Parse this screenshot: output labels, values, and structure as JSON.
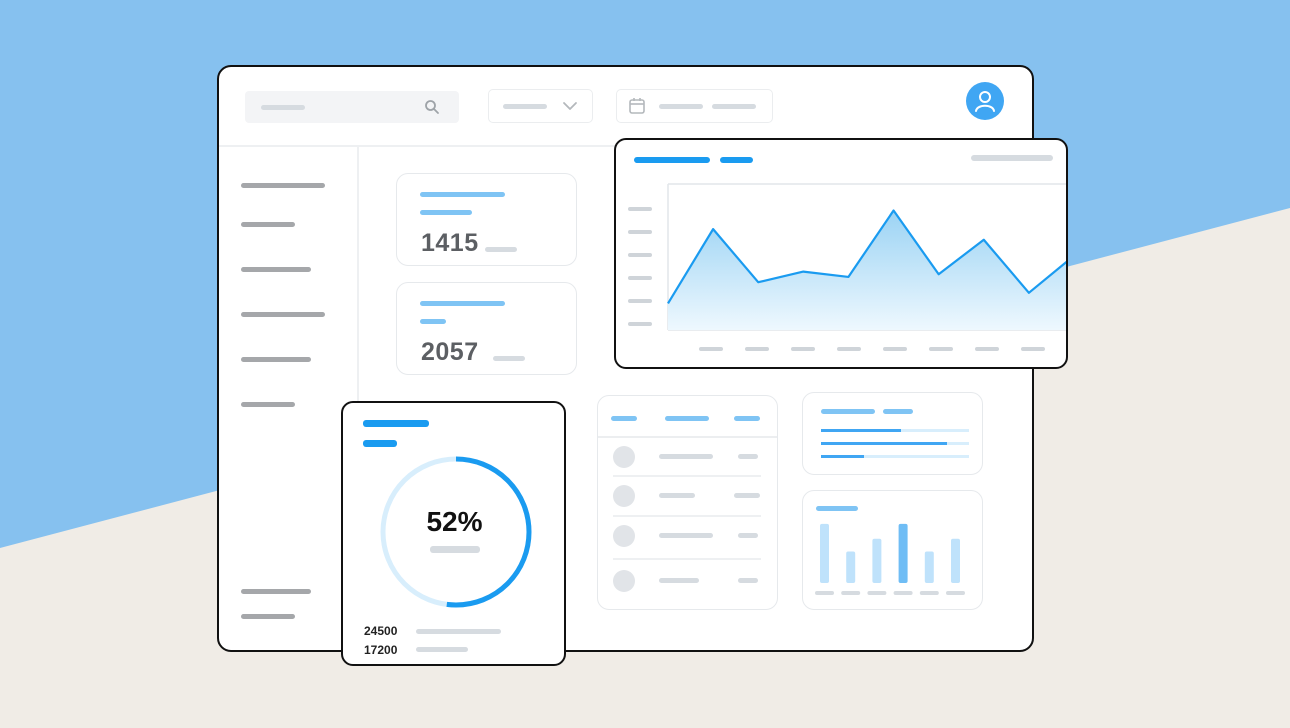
{
  "stats": [
    {
      "value": "1415"
    },
    {
      "value": "2057"
    }
  ],
  "donut": {
    "percent_label": "52%",
    "fraction": 0.52,
    "legend": [
      {
        "value": "24500"
      },
      {
        "value": "17200"
      }
    ]
  },
  "colors": {
    "accent": "#1a9bf0",
    "accent_light": "#7fc4f4",
    "background_top": "#86c1ef",
    "background_bottom": "#f0ece6"
  },
  "icons": [
    "search-icon",
    "chevron-down-icon",
    "calendar-icon",
    "user-icon"
  ],
  "chart_data": [
    {
      "type": "area",
      "title": "",
      "xlabel": "",
      "ylabel": "",
      "series": [
        {
          "values": [
            1,
            3.8,
            1.8,
            2.2,
            2.0,
            4.5,
            2.1,
            3.4,
            1.4,
            2.8
          ]
        }
      ],
      "ylim": [
        0,
        5.5
      ],
      "grid": false
    },
    {
      "type": "bar",
      "title": "",
      "series": [
        {
          "values": [
            6,
            3.2,
            4.5,
            6,
            3.2,
            4.5
          ]
        }
      ],
      "highlighted_index": 3,
      "ylim": [
        0,
        6.5
      ]
    }
  ]
}
